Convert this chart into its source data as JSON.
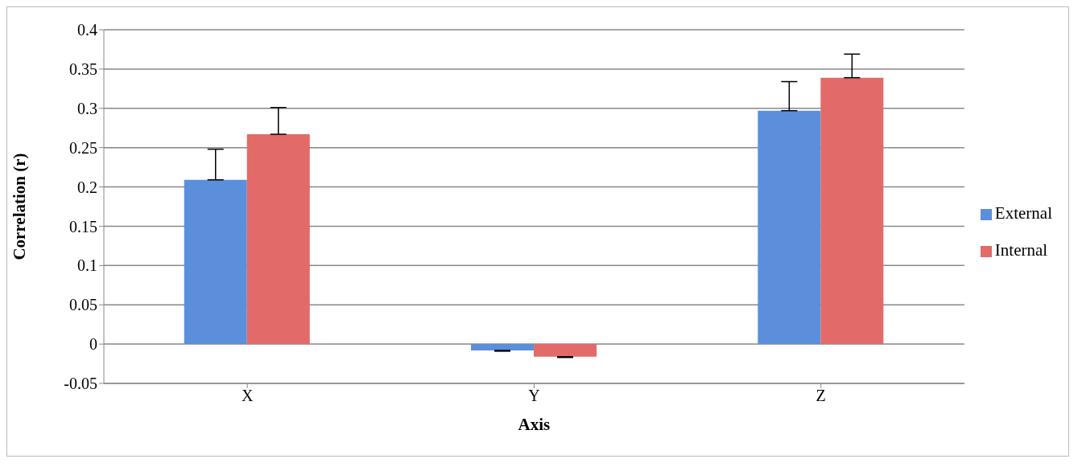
{
  "chart_data": {
    "type": "bar",
    "xlabel": "Axis",
    "ylabel": "Correlation (r)",
    "categories": [
      "X",
      "Y",
      "Z"
    ],
    "series": [
      {
        "name": "External",
        "color": "#5b8fdc",
        "values": [
          0.209,
          -0.008,
          0.297
        ],
        "errors": [
          [
            0.209,
            0.248
          ],
          [
            -0.009,
            -0.008
          ],
          [
            0.297,
            0.334
          ]
        ]
      },
      {
        "name": "Internal",
        "color": "#e26a68",
        "values": [
          0.267,
          -0.016,
          0.339
        ],
        "errors": [
          [
            0.267,
            0.301
          ],
          [
            -0.017,
            -0.016
          ],
          [
            0.339,
            0.369
          ]
        ]
      }
    ],
    "ylim": [
      -0.05,
      0.4
    ],
    "yticks": [
      -0.05,
      0,
      0.05,
      0.1,
      0.15,
      0.2,
      0.25,
      0.3,
      0.35,
      0.4
    ],
    "grid": "y",
    "legend": "right"
  }
}
